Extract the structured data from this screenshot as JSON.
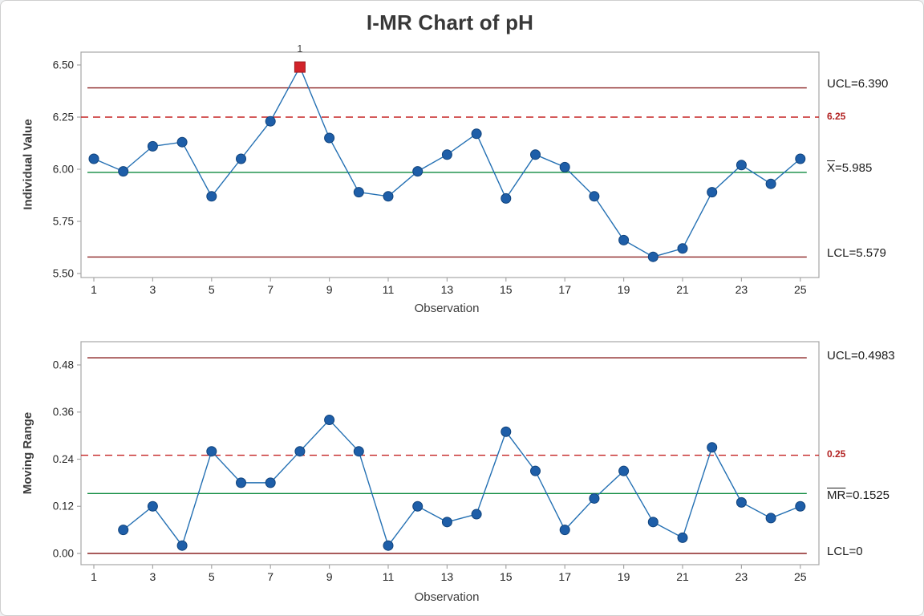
{
  "window": {
    "title": "I-MR Chart of pH"
  },
  "colors": {
    "series_blue": "#2470b3",
    "marker_blue": "#1e5ea8",
    "marker_edge": "#10437c",
    "limit_maroon": "#8b2323",
    "center_green": "#0e8a3e",
    "reference_red": "#c52525",
    "flag_red": "#d2232a",
    "flag_edge": "#9e1a1f",
    "axis_gray": "#a6a6a6",
    "tick_text": "#262626"
  },
  "chart_data": [
    {
      "type": "line",
      "name": "individuals-chart",
      "title": "I-MR Chart of pH",
      "xlabel": "Observation",
      "ylabel": "Individual Value",
      "x": [
        1,
        2,
        3,
        4,
        5,
        6,
        7,
        8,
        9,
        10,
        11,
        12,
        13,
        14,
        15,
        16,
        17,
        18,
        19,
        20,
        21,
        22,
        23,
        24,
        25
      ],
      "values": [
        6.05,
        5.99,
        6.11,
        6.13,
        5.87,
        6.05,
        6.23,
        6.49,
        6.15,
        5.89,
        5.87,
        5.99,
        6.07,
        6.17,
        5.86,
        6.07,
        6.01,
        5.87,
        5.66,
        5.58,
        5.62,
        5.89,
        6.02,
        5.93,
        6.05
      ],
      "center_line": 5.985,
      "ucl": 6.39,
      "lcl": 5.579,
      "reference_line": 6.25,
      "out_of_control_points": [
        8
      ],
      "flag_label": "1",
      "ylim": [
        5.5,
        6.5
      ],
      "y_tick_values": [
        6.5,
        6.25,
        6.0,
        5.75,
        5.5
      ],
      "y_tick_labels": [
        "6.50",
        "6.25",
        "6.00",
        "5.75",
        "5.50"
      ],
      "x_ticks": [
        1,
        3,
        5,
        7,
        9,
        11,
        13,
        15,
        17,
        19,
        21,
        23,
        25
      ],
      "labels": {
        "ucl": "UCL=6.390",
        "reference": "6.25",
        "center_bar_part": "X",
        "center_rest": "=5.985",
        "lcl": "LCL=5.579"
      }
    },
    {
      "type": "line",
      "name": "moving-range-chart",
      "title": "",
      "xlabel": "Observation",
      "ylabel": "Moving Range",
      "x": [
        2,
        3,
        4,
        5,
        6,
        7,
        8,
        9,
        10,
        11,
        12,
        13,
        14,
        15,
        16,
        17,
        18,
        19,
        20,
        21,
        22,
        23,
        24,
        25
      ],
      "values": [
        0.06,
        0.12,
        0.02,
        0.26,
        0.18,
        0.18,
        0.26,
        0.34,
        0.26,
        0.02,
        0.12,
        0.08,
        0.1,
        0.31,
        0.21,
        0.06,
        0.14,
        0.21,
        0.08,
        0.04,
        0.27,
        0.13,
        0.09,
        0.12
      ],
      "center_line": 0.1525,
      "ucl": 0.4983,
      "lcl": 0,
      "reference_line": 0.25,
      "out_of_control_points": [],
      "flag_label": "",
      "ylim": [
        0.0,
        0.48
      ],
      "y_tick_values": [
        0.48,
        0.36,
        0.24,
        0.12,
        0.0
      ],
      "y_tick_labels": [
        "0.48",
        "0.36",
        "0.24",
        "0.12",
        "0.00"
      ],
      "x_ticks": [
        1,
        3,
        5,
        7,
        9,
        11,
        13,
        15,
        17,
        19,
        21,
        23,
        25
      ],
      "labels": {
        "ucl": "UCL=0.4983",
        "reference": "0.25",
        "center_bar_part": "MR",
        "center_rest": "=0.1525",
        "lcl": "LCL=0"
      }
    }
  ]
}
